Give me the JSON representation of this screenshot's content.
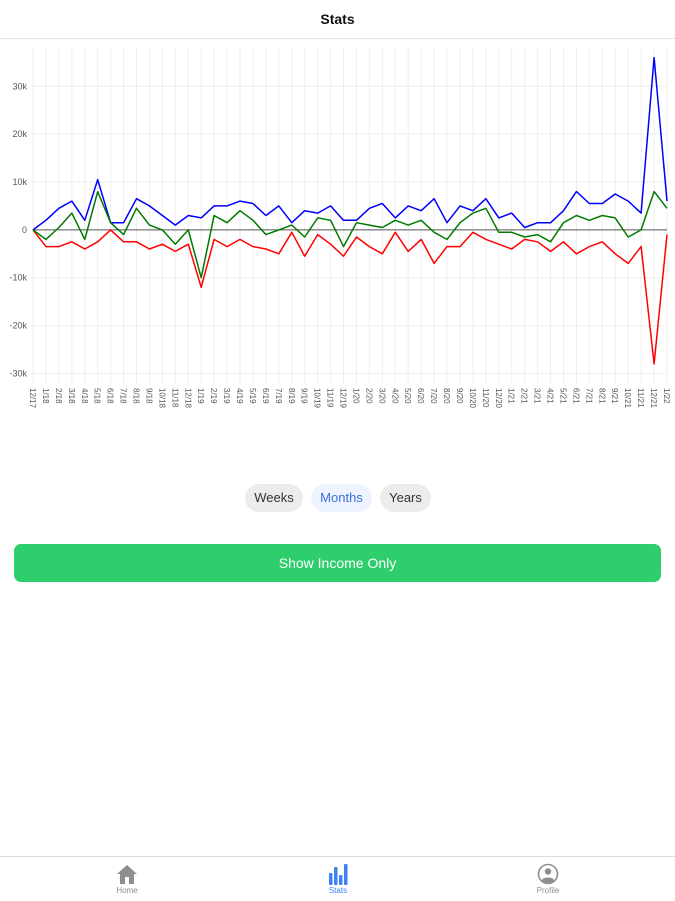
{
  "header": {
    "title": "Stats"
  },
  "segments": [
    {
      "label": "Weeks",
      "active": false
    },
    {
      "label": "Months",
      "active": true
    },
    {
      "label": "Years",
      "active": false
    }
  ],
  "primary_button": {
    "label": "Show Income Only"
  },
  "tabbar": [
    {
      "label": "Home",
      "icon": "home-icon",
      "active": false
    },
    {
      "label": "Stats",
      "icon": "bar-chart-icon",
      "active": true
    },
    {
      "label": "Profile",
      "icon": "profile-icon",
      "active": false
    }
  ],
  "colors": {
    "accent": "#3b82f6",
    "button": "#2fce6c",
    "income": "#0000ff",
    "expense": "#ff0000",
    "net": "#007a00"
  },
  "chart_data": {
    "type": "line",
    "x": [
      "12/17",
      "1/18",
      "2/18",
      "3/18",
      "4/18",
      "5/18",
      "6/18",
      "7/18",
      "8/18",
      "9/18",
      "10/18",
      "11/18",
      "12/18",
      "1/19",
      "2/19",
      "3/19",
      "4/19",
      "5/19",
      "6/19",
      "7/19",
      "8/19",
      "9/19",
      "10/19",
      "11/19",
      "12/19",
      "1/20",
      "2/20",
      "3/20",
      "4/20",
      "5/20",
      "6/20",
      "7/20",
      "8/20",
      "9/20",
      "10/20",
      "11/20",
      "12/20",
      "1/21",
      "2/21",
      "3/21",
      "4/21",
      "5/21",
      "6/21",
      "7/21",
      "8/21",
      "9/21",
      "10/21",
      "11/21",
      "12/21",
      "1/22"
    ],
    "series": [
      {
        "color": "#0000ff",
        "values": [
          0,
          2000,
          4500,
          6000,
          2000,
          10500,
          1500,
          1500,
          6500,
          5000,
          3000,
          1000,
          3000,
          2500,
          5000,
          5000,
          6000,
          5500,
          3000,
          5000,
          1500,
          4000,
          3500,
          5000,
          2000,
          2000,
          4500,
          5500,
          2500,
          5000,
          4000,
          6500,
          1500,
          5000,
          4000,
          6500,
          2500,
          3500,
          500,
          1500,
          1500,
          4000,
          8000,
          5500,
          5500,
          7500,
          6000,
          3500,
          36000,
          6000
        ]
      },
      {
        "color": "#ff0000",
        "values": [
          0,
          -3500,
          -3500,
          -2500,
          -4000,
          -2500,
          0,
          -2500,
          -2500,
          -4000,
          -3000,
          -4500,
          -3000,
          -12000,
          -2000,
          -3500,
          -2000,
          -3500,
          -4000,
          -5000,
          -500,
          -5500,
          -1000,
          -3000,
          -5500,
          -1500,
          -3500,
          -5000,
          -500,
          -4500,
          -2000,
          -7000,
          -3500,
          -3500,
          -500,
          -2000,
          -3000,
          -4000,
          -2000,
          -2500,
          -4500,
          -2500,
          -5000,
          -3500,
          -2500,
          -5000,
          -7000,
          -3500,
          -28000,
          -1000
        ]
      },
      {
        "color": "#007a00",
        "values": [
          0,
          -2000,
          500,
          3500,
          -2000,
          8000,
          1500,
          -1000,
          4500,
          1000,
          0,
          -3000,
          0,
          -10000,
          3000,
          1500,
          4000,
          2000,
          -1000,
          0,
          1000,
          -1500,
          2500,
          2000,
          -3500,
          1500,
          1000,
          500,
          2000,
          1000,
          2000,
          -500,
          -2000,
          1500,
          3500,
          4500,
          -500,
          -500,
          -1500,
          -1000,
          -2500,
          1500,
          3000,
          2000,
          3000,
          2500,
          -1500,
          0,
          8000,
          4500
        ]
      }
    ],
    "y_ticks": [
      "30k",
      "20k",
      "10k",
      "0",
      "-10k",
      "-20k",
      "-30k"
    ],
    "ylim": [
      -32000,
      38000
    ],
    "grid": true,
    "legend": "none"
  }
}
